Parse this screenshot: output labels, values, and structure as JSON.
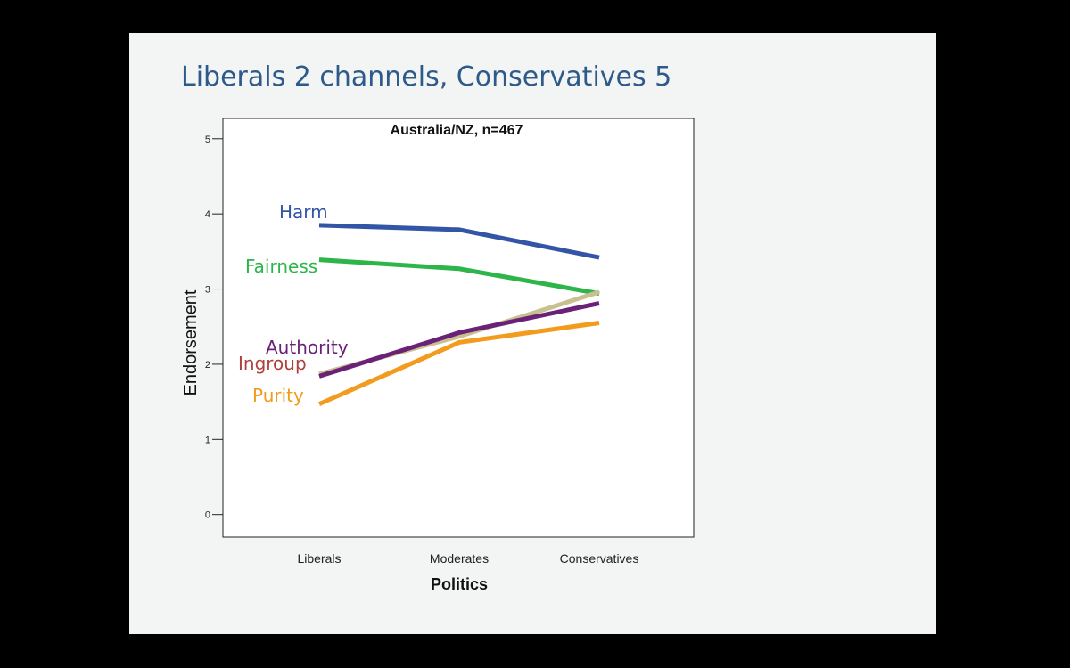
{
  "slide_title": "Liberals 2 channels, Conservatives 5",
  "chart_data": {
    "type": "line",
    "title": "Australia/NZ, n=467",
    "x_label": "Politics",
    "y_label": "Endorsement",
    "categories": [
      "Liberals",
      "Moderates",
      "Conservatives"
    ],
    "series": [
      {
        "name": "Harm",
        "color": "#3355a5",
        "values": [
          3.85,
          3.79,
          3.42
        ]
      },
      {
        "name": "Fairness",
        "color": "#2db54a",
        "values": [
          3.39,
          3.27,
          2.94
        ]
      },
      {
        "name": "Ingroup",
        "color": "#c9c08f",
        "values": [
          1.87,
          2.37,
          2.96
        ]
      },
      {
        "name": "Authority",
        "color": "#6a2177",
        "values": [
          1.84,
          2.42,
          2.81
        ]
      },
      {
        "name": "Purity",
        "color": "#f29b1c",
        "values": [
          1.47,
          2.29,
          2.55
        ]
      }
    ],
    "ylim": [
      -0.3,
      5.27
    ],
    "yticks": [
      0,
      1,
      2,
      3,
      4,
      5
    ]
  }
}
